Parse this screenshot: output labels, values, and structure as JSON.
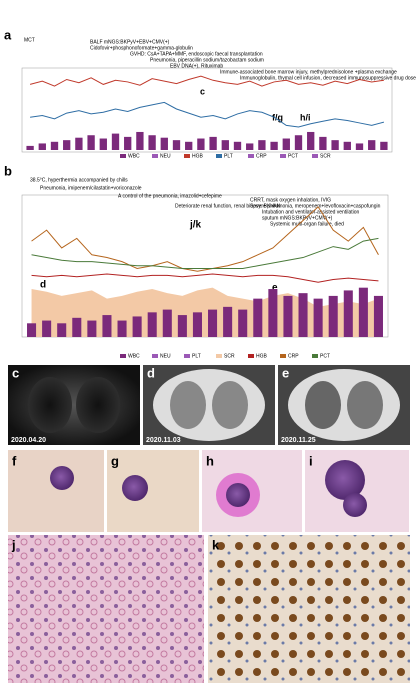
{
  "panels": {
    "a": "a",
    "b": "b",
    "c": "c",
    "d": "d",
    "e": "e",
    "f": "f",
    "g": "g",
    "h": "h",
    "i": "i",
    "j": "j",
    "k": "k"
  },
  "dates": [
    "2020.04.20",
    "2020.11.03",
    "2020.11.25"
  ],
  "annotations_a": [
    "MCT",
    "BALF mNGS:BKPyV+EBV+CMV(+)",
    "Cidofovir+phosphonoformate+gamma-globulin",
    "GVHD: CsA+TAPA+MMF, endoscopic faecal transplantation",
    "Pneumonia, piperacillin sodium/tazobactam sodium",
    "EBV DNA(+), Rituximab",
    "Immune-associated bone marrow injury, methylprednisolone +plasma exchange",
    "Immunoglobulin, thymal cell infusion, decreased immunosuppressive drug dose"
  ],
  "markers_a": [
    "c",
    "f/g",
    "h/i"
  ],
  "annotations_b": [
    "38.5°C, hyperthermia accompanied by chills",
    "Pneumonia, imipenem/cilastatin+voriconazole",
    "A control of the pneumonia, imazolid+cefepime",
    "Deteriorate renal function, renal biopsy: BKVAN",
    "CRRT, mask oxygen inhalation, IVIG",
    "Severe pneumonia, meropenem+levofloxacin+caspofungin",
    "Intubation and ventilator-assisted ventilation",
    "sputum mNGS:BKPyV+CMV(+)",
    "Systemic multi-organ failure, died"
  ],
  "markers_b": [
    "j/k",
    "d",
    "e"
  ],
  "chart_data": [
    {
      "type": "combo",
      "ylim": [
        0,
        100
      ],
      "legend": [
        "WBC",
        "NEU",
        "HGB",
        "PLT",
        "CRP",
        "PCT",
        "SCR"
      ],
      "series": [
        {
          "name": "HGB",
          "mark": "line",
          "color": "#c0392b",
          "values": [
            80,
            84,
            78,
            86,
            82,
            88,
            80,
            85,
            83,
            79,
            87,
            84,
            81,
            86,
            90,
            85,
            82,
            80,
            84,
            78,
            83,
            85,
            80,
            82,
            79,
            84,
            81,
            86,
            83,
            85
          ]
        },
        {
          "name": "PLT",
          "mark": "line",
          "color": "#2e6da4",
          "values": [
            40,
            42,
            38,
            45,
            48,
            44,
            46,
            50,
            47,
            52,
            55,
            58,
            50,
            45,
            40,
            42,
            38,
            44,
            48,
            46,
            40,
            30,
            28,
            32,
            35,
            38,
            36,
            33,
            30,
            34
          ]
        },
        {
          "name": "WBC",
          "mark": "bar",
          "color": "#7b2a7b",
          "values": [
            5,
            8,
            10,
            12,
            15,
            18,
            14,
            20,
            16,
            22,
            18,
            15,
            12,
            10,
            14,
            16,
            12,
            10,
            8,
            12,
            10,
            14,
            18,
            22,
            16,
            12,
            10,
            8,
            12,
            10
          ]
        }
      ]
    },
    {
      "type": "combo",
      "ylim": [
        0,
        100
      ],
      "legend": [
        "WBC",
        "NEU",
        "PLT",
        "SCR",
        "HGB",
        "CRP",
        "PCT"
      ],
      "series": [
        {
          "name": "SCR",
          "mark": "area",
          "color": "#f3c9a6",
          "values": [
            35,
            33,
            30,
            32,
            34,
            28,
            30,
            33,
            35,
            32,
            30,
            34,
            36,
            30,
            28,
            26,
            30,
            32,
            28,
            22,
            24,
            26,
            24,
            28
          ]
        },
        {
          "name": "WBC",
          "mark": "bar",
          "color": "#7b2a7b",
          "values": [
            10,
            12,
            10,
            14,
            12,
            16,
            12,
            15,
            18,
            20,
            16,
            18,
            20,
            22,
            20,
            28,
            35,
            30,
            32,
            28,
            30,
            34,
            36,
            30
          ]
        },
        {
          "name": "CRP",
          "mark": "line",
          "color": "#b5651d",
          "values": [
            70,
            78,
            65,
            72,
            60,
            58,
            55,
            50,
            52,
            55,
            50,
            48,
            50,
            52,
            55,
            60,
            65,
            75,
            85,
            95,
            78,
            70,
            80,
            60
          ]
        },
        {
          "name": "PCT",
          "mark": "line",
          "color": "#4a7a3a",
          "values": [
            60,
            58,
            56,
            55,
            55,
            54,
            53,
            52,
            52,
            51,
            50,
            50,
            50,
            50,
            50,
            52,
            54,
            56,
            58,
            62,
            66,
            64,
            70,
            72
          ]
        },
        {
          "name": "HGB",
          "mark": "line",
          "color": "#b22222",
          "values": [
            45,
            44,
            45,
            44,
            45,
            46,
            45,
            44,
            45,
            45,
            44,
            45,
            46,
            45,
            44,
            45,
            45,
            44,
            42,
            40,
            42,
            43,
            42,
            41
          ]
        }
      ]
    }
  ]
}
